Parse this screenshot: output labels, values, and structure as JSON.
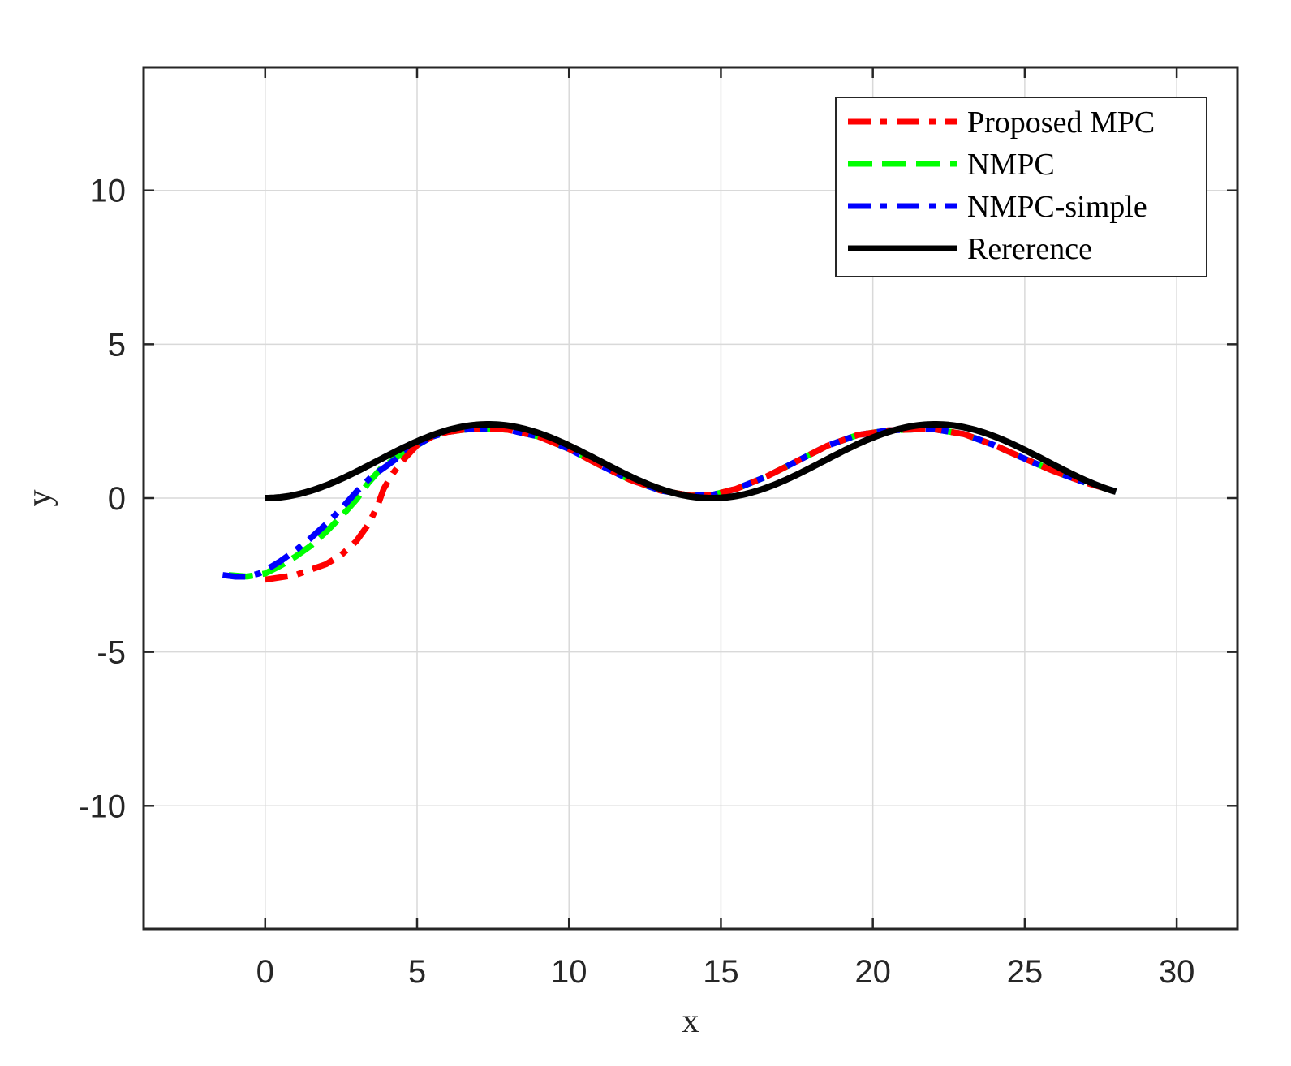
{
  "chart_data": {
    "type": "line",
    "title": "",
    "xlabel": "x",
    "ylabel": "y",
    "xlim": [
      -4,
      32
    ],
    "ylim": [
      -14,
      14
    ],
    "xticks": [
      "0",
      "5",
      "10",
      "15",
      "20",
      "25",
      "30"
    ],
    "yticks": [
      "-10",
      "-5",
      "0",
      "5",
      "10"
    ],
    "grid": true,
    "legend_position": "top-right",
    "series": [
      {
        "name": "Proposed MPC",
        "color": "#ff0000",
        "style": "dashdot",
        "x": [
          0,
          1,
          2,
          2.5,
          3,
          3.4,
          3.7,
          3.9,
          4.2,
          4.6,
          5.0,
          5.5,
          6.0,
          6.5,
          7.0,
          7.5,
          8.0,
          9.0,
          10.0,
          11.0,
          12.0,
          13.0,
          14.0,
          14.7,
          15.5,
          16.5,
          17.5,
          18.5,
          19.5,
          20.5,
          21.5,
          22.0,
          23.0,
          24.0,
          25.0,
          26.0,
          27.0,
          28.0
        ],
        "y": [
          -2.65,
          -2.5,
          -2.15,
          -1.85,
          -1.4,
          -0.85,
          -0.25,
          0.3,
          0.8,
          1.3,
          1.72,
          2.0,
          2.15,
          2.22,
          2.26,
          2.26,
          2.22,
          2.0,
          1.6,
          1.08,
          0.6,
          0.25,
          0.08,
          0.1,
          0.3,
          0.7,
          1.2,
          1.7,
          2.05,
          2.2,
          2.24,
          2.24,
          2.08,
          1.72,
          1.28,
          0.86,
          0.5,
          0.22
        ]
      },
      {
        "name": "NMPC",
        "color": "#00ff00",
        "style": "dashed",
        "x": [
          -1.2,
          -0.6,
          0,
          0.5,
          1,
          1.5,
          2,
          2.5,
          3,
          3.4,
          3.8,
          4.5,
          5.0,
          5.5,
          6.0,
          6.5,
          7.0,
          7.5,
          8.0,
          9.0,
          10.0,
          11.0,
          12.0,
          13.0,
          14.0,
          14.7,
          15.5,
          16.5,
          17.5,
          18.5,
          19.5,
          20.5,
          21.5,
          22.0,
          23.0,
          24.0,
          25.0,
          26.0,
          27.0,
          28.0
        ],
        "y": [
          -2.5,
          -2.55,
          -2.45,
          -2.2,
          -1.9,
          -1.55,
          -1.1,
          -0.6,
          -0.05,
          0.5,
          0.95,
          1.45,
          1.72,
          2.0,
          2.15,
          2.22,
          2.26,
          2.26,
          2.22,
          2.0,
          1.6,
          1.08,
          0.6,
          0.25,
          0.08,
          0.1,
          0.3,
          0.7,
          1.2,
          1.7,
          2.05,
          2.2,
          2.24,
          2.24,
          2.08,
          1.72,
          1.28,
          0.86,
          0.5,
          0.22
        ]
      },
      {
        "name": "NMPC-simple",
        "color": "#0000ff",
        "style": "dashdot",
        "x": [
          -1.4,
          -1.0,
          -0.6,
          -0.2,
          0,
          0.5,
          1,
          1.5,
          2,
          2.5,
          3,
          3.5,
          4.0,
          4.5,
          5.0,
          5.5,
          6.0,
          6.5,
          7.0,
          7.5,
          8.0,
          9.0,
          10.0,
          11.0,
          12.0,
          13.0,
          14.0,
          14.7,
          15.5,
          16.5,
          17.5,
          18.5,
          19.5,
          20.5,
          21.5,
          22.0,
          23.0,
          24.0,
          25.0,
          26.0,
          27.0,
          28.0
        ],
        "y": [
          -2.5,
          -2.55,
          -2.55,
          -2.45,
          -2.35,
          -2.05,
          -1.7,
          -1.3,
          -0.85,
          -0.35,
          0.2,
          0.7,
          1.05,
          1.42,
          1.72,
          2.0,
          2.15,
          2.22,
          2.26,
          2.26,
          2.22,
          2.0,
          1.6,
          1.08,
          0.6,
          0.25,
          0.08,
          0.1,
          0.3,
          0.7,
          1.2,
          1.7,
          2.05,
          2.2,
          2.24,
          2.24,
          2.08,
          1.72,
          1.28,
          0.86,
          0.5,
          0.22
        ]
      },
      {
        "name": "Rererence",
        "color": "#000000",
        "style": "solid",
        "formula": "y = 1.2 - 1.2*cos(2*pi*x/14.7)",
        "x_range": [
          0,
          28
        ]
      }
    ]
  }
}
